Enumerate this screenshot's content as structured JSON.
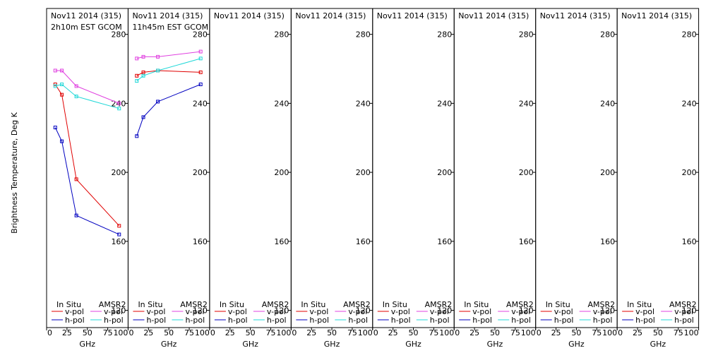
{
  "ylabel": "Brightness Temperature, Deg K",
  "colors": {
    "insitu_v": "#e00000",
    "insitu_h": "#0000c0",
    "amsr2_v": "#e040e0",
    "amsr2_h": "#20d8d8",
    "axis": "#000000"
  },
  "legend": {
    "insitu_title": "In Situ",
    "amsr2_title": "AMSR2",
    "vpol": "v-pol",
    "hpol": "h-pol"
  },
  "chart_data": [
    {
      "type": "line",
      "title": "Nov11 2014 (315)",
      "subtitle": "2h10m EST GCOM",
      "xlabel": "GHz",
      "xlim": [
        0,
        100
      ],
      "ylim": [
        110,
        295
      ],
      "xticks": [
        "0",
        "25",
        "50",
        "75",
        "100"
      ],
      "yticks": [
        "120",
        "160",
        "200",
        "240",
        "280"
      ],
      "series": [
        {
          "name": "In Situ v-pol",
          "color_key": "insitu_v",
          "x": [
            10.65,
            18.7,
            36.5,
            89
          ],
          "y": [
            251,
            245,
            196,
            169
          ]
        },
        {
          "name": "In Situ h-pol",
          "color_key": "insitu_h",
          "x": [
            10.65,
            18.7,
            36.5,
            89
          ],
          "y": [
            226,
            218,
            175,
            164
          ]
        },
        {
          "name": "AMSR2 v-pol",
          "color_key": "amsr2_v",
          "x": [
            10.65,
            18.7,
            36.5,
            89
          ],
          "y": [
            259,
            259,
            250,
            240
          ]
        },
        {
          "name": "AMSR2 h-pol",
          "color_key": "amsr2_h",
          "x": [
            10.65,
            18.7,
            36.5,
            89
          ],
          "y": [
            250,
            251,
            244,
            237
          ]
        }
      ]
    },
    {
      "type": "line",
      "title": "Nov11 2014 (315)",
      "subtitle": "11h45m EST GCOM",
      "xlabel": "GHz",
      "xlim": [
        0,
        100
      ],
      "ylim": [
        110,
        295
      ],
      "xticks": [
        "0",
        "25",
        "50",
        "75",
        "100"
      ],
      "yticks": [
        "120",
        "160",
        "200",
        "240",
        "280"
      ],
      "series": [
        {
          "name": "In Situ v-pol",
          "color_key": "insitu_v",
          "x": [
            10.65,
            18.7,
            36.5,
            89
          ],
          "y": [
            256,
            258,
            259,
            258
          ]
        },
        {
          "name": "In Situ h-pol",
          "color_key": "insitu_h",
          "x": [
            10.65,
            18.7,
            36.5,
            89
          ],
          "y": [
            221,
            232,
            241,
            251
          ]
        },
        {
          "name": "AMSR2 v-pol",
          "color_key": "amsr2_v",
          "x": [
            10.65,
            18.7,
            36.5,
            89
          ],
          "y": [
            266,
            267,
            267,
            270
          ]
        },
        {
          "name": "AMSR2 h-pol",
          "color_key": "amsr2_h",
          "x": [
            10.65,
            18.7,
            36.5,
            89
          ],
          "y": [
            253,
            256,
            259,
            266
          ]
        }
      ]
    },
    {
      "type": "line",
      "title": "Nov11 2014 (315)",
      "subtitle": "",
      "xlabel": "GHz",
      "xlim": [
        0,
        100
      ],
      "ylim": [
        110,
        295
      ],
      "xticks": [
        "0",
        "25",
        "50",
        "75",
        "100"
      ],
      "yticks": [
        "120",
        "160",
        "200",
        "240",
        "280"
      ],
      "series": []
    },
    {
      "type": "line",
      "title": "Nov11 2014 (315)",
      "subtitle": "",
      "xlabel": "GHz",
      "xlim": [
        0,
        100
      ],
      "ylim": [
        110,
        295
      ],
      "xticks": [
        "0",
        "25",
        "50",
        "75",
        "100"
      ],
      "yticks": [
        "120",
        "160",
        "200",
        "240",
        "280"
      ],
      "series": []
    },
    {
      "type": "line",
      "title": "Nov11 2014 (315)",
      "subtitle": "",
      "xlabel": "GHz",
      "xlim": [
        0,
        100
      ],
      "ylim": [
        110,
        295
      ],
      "xticks": [
        "0",
        "25",
        "50",
        "75",
        "100"
      ],
      "yticks": [
        "120",
        "160",
        "200",
        "240",
        "280"
      ],
      "series": []
    },
    {
      "type": "line",
      "title": "Nov11 2014 (315)",
      "subtitle": "",
      "xlabel": "GHz",
      "xlim": [
        0,
        100
      ],
      "ylim": [
        110,
        295
      ],
      "xticks": [
        "0",
        "25",
        "50",
        "75",
        "100"
      ],
      "yticks": [
        "120",
        "160",
        "200",
        "240",
        "280"
      ],
      "series": []
    },
    {
      "type": "line",
      "title": "Nov11 2014 (315)",
      "subtitle": "",
      "xlabel": "GHz",
      "xlim": [
        0,
        100
      ],
      "ylim": [
        110,
        295
      ],
      "xticks": [
        "0",
        "25",
        "50",
        "75",
        "100"
      ],
      "yticks": [
        "120",
        "160",
        "200",
        "240",
        "280"
      ],
      "series": []
    },
    {
      "type": "line",
      "title": "Nov11 2014 (315)",
      "subtitle": "",
      "xlabel": "GHz",
      "xlim": [
        0,
        100
      ],
      "ylim": [
        110,
        295
      ],
      "xticks": [
        "0",
        "25",
        "50",
        "75",
        "100"
      ],
      "yticks": [
        "120",
        "160",
        "200",
        "240",
        "280"
      ],
      "series": []
    }
  ]
}
